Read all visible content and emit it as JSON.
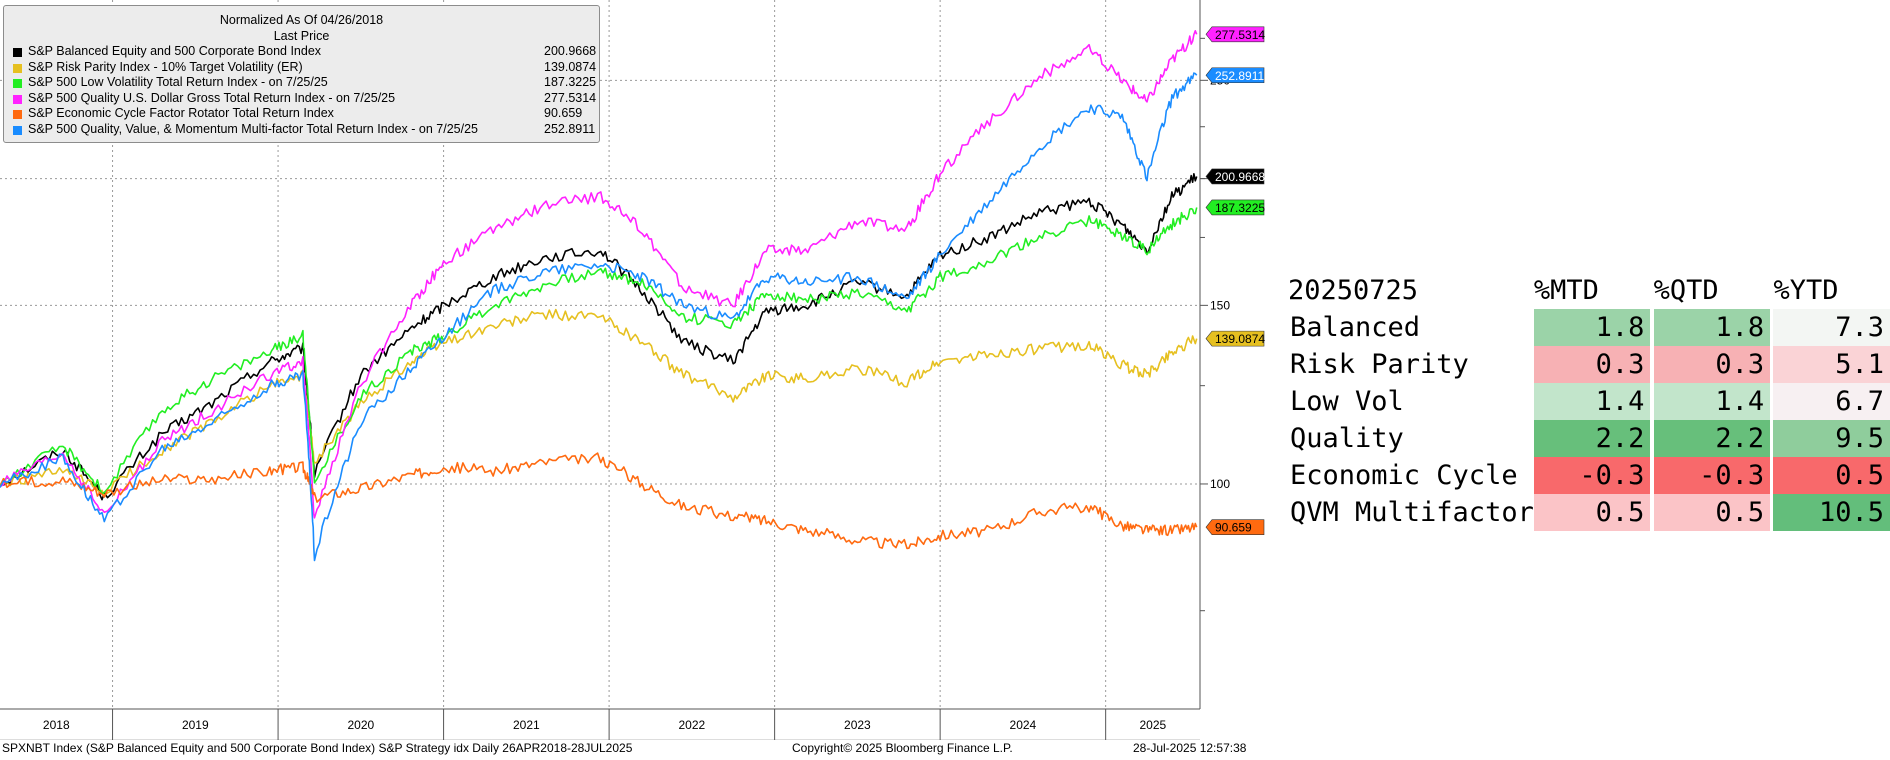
{
  "legend": {
    "header": "Normalized As Of 04/26/2018",
    "subheader": "Last Price",
    "entries": [
      {
        "name": "S&P Balanced Equity and 500 Corporate Bond Index",
        "value": "200.9668",
        "color": "#000000"
      },
      {
        "name": "S&P Risk Parity Index - 10% Target Volatility (ER)",
        "value": "139.0874",
        "color": "#e6c020"
      },
      {
        "name": "S&P 500 Low Volatility Total Return Index -  on 7/25/25",
        "value": "187.3225",
        "color": "#22ee22"
      },
      {
        "name": "S&P 500 Quality U.S. Dollar Gross Total Return Index -  on 7/25/25",
        "value": "277.5314",
        "color": "#ff22ff"
      },
      {
        "name": "S&P Economic Cycle Factor Rotator Total Return Index",
        "value": "90.659",
        "color": "#ff6a10"
      },
      {
        "name": "S&P 500 Quality, Value, & Momentum Multi-factor Total Return Index -  on 7/25/25",
        "value": "252.8911",
        "color": "#1a8cff"
      }
    ]
  },
  "chart_data": {
    "type": "line",
    "x_start": "2018-04-26",
    "x_end": "2025-07-28",
    "xlim": [
      2018.32,
      2025.57
    ],
    "ylim": [
      60,
      300
    ],
    "y_scale": "log",
    "y_ticks": [
      100,
      150,
      200,
      250
    ],
    "x_ticks": [
      "2018",
      "2019",
      "2020",
      "2021",
      "2022",
      "2023",
      "2024",
      "2025"
    ],
    "x_tick_positions": [
      2018.32,
      2019.0,
      2020.0,
      2021.0,
      2022.0,
      2023.0,
      2024.0,
      2025.0
    ],
    "grid": true,
    "legend_position": "top-left",
    "series": [
      {
        "name": "S&P Balanced Equity and 500 Corporate Bond Index",
        "color": "#000000",
        "label": "200.9668",
        "x": [
          2018.32,
          2018.7,
          2018.95,
          2019.3,
          2019.6,
          2019.95,
          2020.15,
          2020.22,
          2020.5,
          2020.8,
          2021.0,
          2021.3,
          2021.6,
          2021.95,
          2022.2,
          2022.45,
          2022.75,
          2022.95,
          2023.2,
          2023.5,
          2023.8,
          2024.0,
          2024.3,
          2024.6,
          2024.9,
          2025.1,
          2025.25,
          2025.4,
          2025.55
        ],
        "y": [
          100,
          108,
          97,
          112,
          120,
          132,
          136,
          102,
          128,
          142,
          150,
          160,
          167,
          170,
          155,
          138,
          132,
          148,
          150,
          158,
          153,
          168,
          175,
          185,
          190,
          180,
          170,
          192,
          200.97
        ]
      },
      {
        "name": "S&P Risk Parity Index - 10% Target Volatility (ER)",
        "color": "#e6c020",
        "label": "139.0874",
        "x": [
          2018.32,
          2018.7,
          2018.95,
          2019.3,
          2019.6,
          2019.95,
          2020.15,
          2020.22,
          2020.5,
          2020.8,
          2021.0,
          2021.3,
          2021.6,
          2021.95,
          2022.2,
          2022.45,
          2022.75,
          2022.95,
          2023.2,
          2023.5,
          2023.8,
          2024.0,
          2024.3,
          2024.6,
          2024.9,
          2025.1,
          2025.25,
          2025.4,
          2025.55
        ],
        "y": [
          100,
          103,
          98,
          108,
          115,
          125,
          128,
          105,
          120,
          132,
          138,
          143,
          147,
          146,
          138,
          128,
          122,
          128,
          127,
          130,
          126,
          132,
          134,
          136,
          137,
          131,
          128,
          135,
          139.09
        ]
      },
      {
        "name": "S&P 500 Low Volatility Total Return Index -  on 7/25/25",
        "color": "#22ee22",
        "label": "187.3225",
        "x": [
          2018.32,
          2018.7,
          2018.95,
          2019.3,
          2019.6,
          2019.95,
          2020.15,
          2020.22,
          2020.5,
          2020.8,
          2021.0,
          2021.3,
          2021.6,
          2021.95,
          2022.2,
          2022.45,
          2022.75,
          2022.95,
          2023.2,
          2023.5,
          2023.8,
          2024.0,
          2024.3,
          2024.6,
          2024.9,
          2025.1,
          2025.25,
          2025.4,
          2025.55
        ],
        "y": [
          100,
          109,
          98,
          118,
          127,
          135,
          140,
          100,
          122,
          135,
          140,
          150,
          157,
          162,
          158,
          146,
          144,
          154,
          152,
          154,
          148,
          160,
          166,
          175,
          182,
          176,
          170,
          180,
          187.32
        ]
      },
      {
        "name": "S&P 500 Quality U.S. Dollar Gross Total Return Index -  on 7/25/25",
        "color": "#ff22ff",
        "label": "277.5314",
        "x": [
          2018.32,
          2018.7,
          2018.95,
          2019.3,
          2019.6,
          2019.95,
          2020.15,
          2020.22,
          2020.5,
          2020.8,
          2021.0,
          2021.3,
          2021.6,
          2021.95,
          2022.2,
          2022.45,
          2022.75,
          2022.95,
          2023.2,
          2023.5,
          2023.8,
          2024.0,
          2024.3,
          2024.6,
          2024.9,
          2025.1,
          2025.25,
          2025.4,
          2025.55
        ],
        "y": [
          100,
          107,
          93,
          110,
          118,
          128,
          132,
          92,
          125,
          150,
          165,
          178,
          188,
          192,
          178,
          156,
          150,
          170,
          170,
          182,
          178,
          202,
          228,
          252,
          268,
          250,
          238,
          262,
          277.53
        ]
      },
      {
        "name": "S&P Economic Cycle Factor Rotator Total Return Index",
        "color": "#ff6a10",
        "label": "90.659",
        "x": [
          2018.32,
          2018.7,
          2018.95,
          2019.3,
          2019.6,
          2019.95,
          2020.15,
          2020.22,
          2020.5,
          2020.8,
          2021.0,
          2021.3,
          2021.6,
          2021.95,
          2022.2,
          2022.45,
          2022.75,
          2022.95,
          2023.2,
          2023.5,
          2023.8,
          2024.0,
          2024.3,
          2024.6,
          2024.9,
          2025.1,
          2025.25,
          2025.4,
          2025.55
        ],
        "y": [
          100,
          101,
          98,
          101,
          101,
          103,
          104,
          97,
          99,
          102,
          104,
          103,
          105,
          106,
          100,
          95,
          93,
          92,
          90,
          88,
          87,
          89,
          90,
          94,
          95,
          91,
          90,
          90,
          90.66
        ]
      },
      {
        "name": "S&P 500 Quality, Value, & Momentum Multi-factor Total Return Index -  on 7/25/25",
        "color": "#1a8cff",
        "label": "252.8911",
        "x": [
          2018.32,
          2018.7,
          2018.95,
          2019.3,
          2019.6,
          2019.95,
          2020.15,
          2020.22,
          2020.5,
          2020.8,
          2021.0,
          2021.3,
          2021.6,
          2021.95,
          2022.2,
          2022.45,
          2022.75,
          2022.95,
          2023.2,
          2023.5,
          2023.8,
          2024.0,
          2024.3,
          2024.6,
          2024.9,
          2025.1,
          2025.25,
          2025.4,
          2025.55
        ],
        "y": [
          100,
          106,
          92,
          108,
          115,
          125,
          128,
          85,
          115,
          130,
          140,
          155,
          162,
          165,
          160,
          150,
          145,
          160,
          158,
          160,
          152,
          168,
          190,
          215,
          235,
          230,
          200,
          240,
          252.89
        ]
      }
    ]
  },
  "table": {
    "date": "20250725",
    "columns": [
      "%MTD",
      "%QTD",
      "%YTD"
    ],
    "rows": [
      {
        "label": "Balanced",
        "mtd": "1.8",
        "qtd": "1.8",
        "ytd": "7.3",
        "mtd_bg": "#9bd3a8",
        "qtd_bg": "#9bd3a8",
        "ytd_bg": "#f3f6f3"
      },
      {
        "label": "Risk Parity",
        "mtd": "0.3",
        "qtd": "0.3",
        "ytd": "5.1",
        "mtd_bg": "#f7b1b4",
        "qtd_bg": "#f7b1b4",
        "ytd_bg": "#fad3d6"
      },
      {
        "label": "Low Vol",
        "mtd": "1.4",
        "qtd": "1.4",
        "ytd": "6.7",
        "mtd_bg": "#c2e5cb",
        "qtd_bg": "#c2e5cb",
        "ytd_bg": "#f7f0f2"
      },
      {
        "label": "Quality",
        "mtd": "2.2",
        "qtd": "2.2",
        "ytd": "9.5",
        "mtd_bg": "#67bf7b",
        "qtd_bg": "#67bf7b",
        "ytd_bg": "#8fcd9c"
      },
      {
        "label": "Economic Cycle",
        "mtd": "-0.3",
        "qtd": "-0.3",
        "ytd": "0.5",
        "mtd_bg": "#f8696b",
        "qtd_bg": "#f8696b",
        "ytd_bg": "#f8696b"
      },
      {
        "label": "QVM Multifactor",
        "mtd": "0.5",
        "qtd": "0.5",
        "ytd": "10.5",
        "mtd_bg": "#fbc4c7",
        "qtd_bg": "#fbc4c7",
        "ytd_bg": "#63be7b"
      }
    ]
  },
  "footer": {
    "left": "SPXNBT Index (S&P Balanced Equity and 500 Corporate Bond Index) S&P Strategy idx  Daily 26APR2018-28JUL2025",
    "center": "Copyright© 2025 Bloomberg Finance L.P.",
    "right": "28-Jul-2025 12:57:38"
  }
}
